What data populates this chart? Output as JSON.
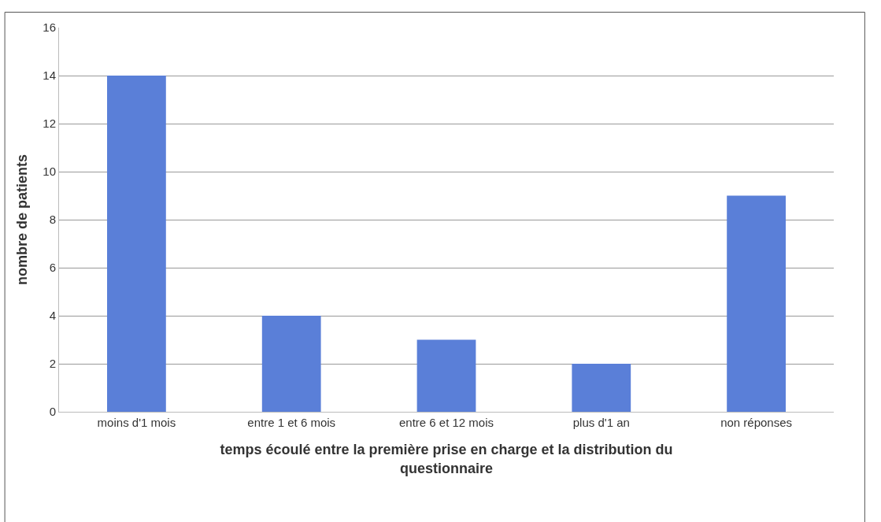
{
  "chart_data": {
    "type": "bar",
    "categories": [
      "moins d'1 mois",
      "entre 1 et 6 mois",
      "entre 6 et 12 mois",
      "plus d'1 an",
      "non réponses"
    ],
    "values": [
      14,
      4,
      3,
      2,
      9
    ],
    "color": "#5a7fd8",
    "xlabel": "temps écoulé entre la première prise en charge et la distribution du questionnaire",
    "ylabel": "nombre de patients",
    "ylim": [
      0,
      16
    ],
    "yticks": [
      0,
      2,
      4,
      6,
      8,
      10,
      12,
      14,
      16
    ],
    "grid": "y",
    "legend": false
  }
}
